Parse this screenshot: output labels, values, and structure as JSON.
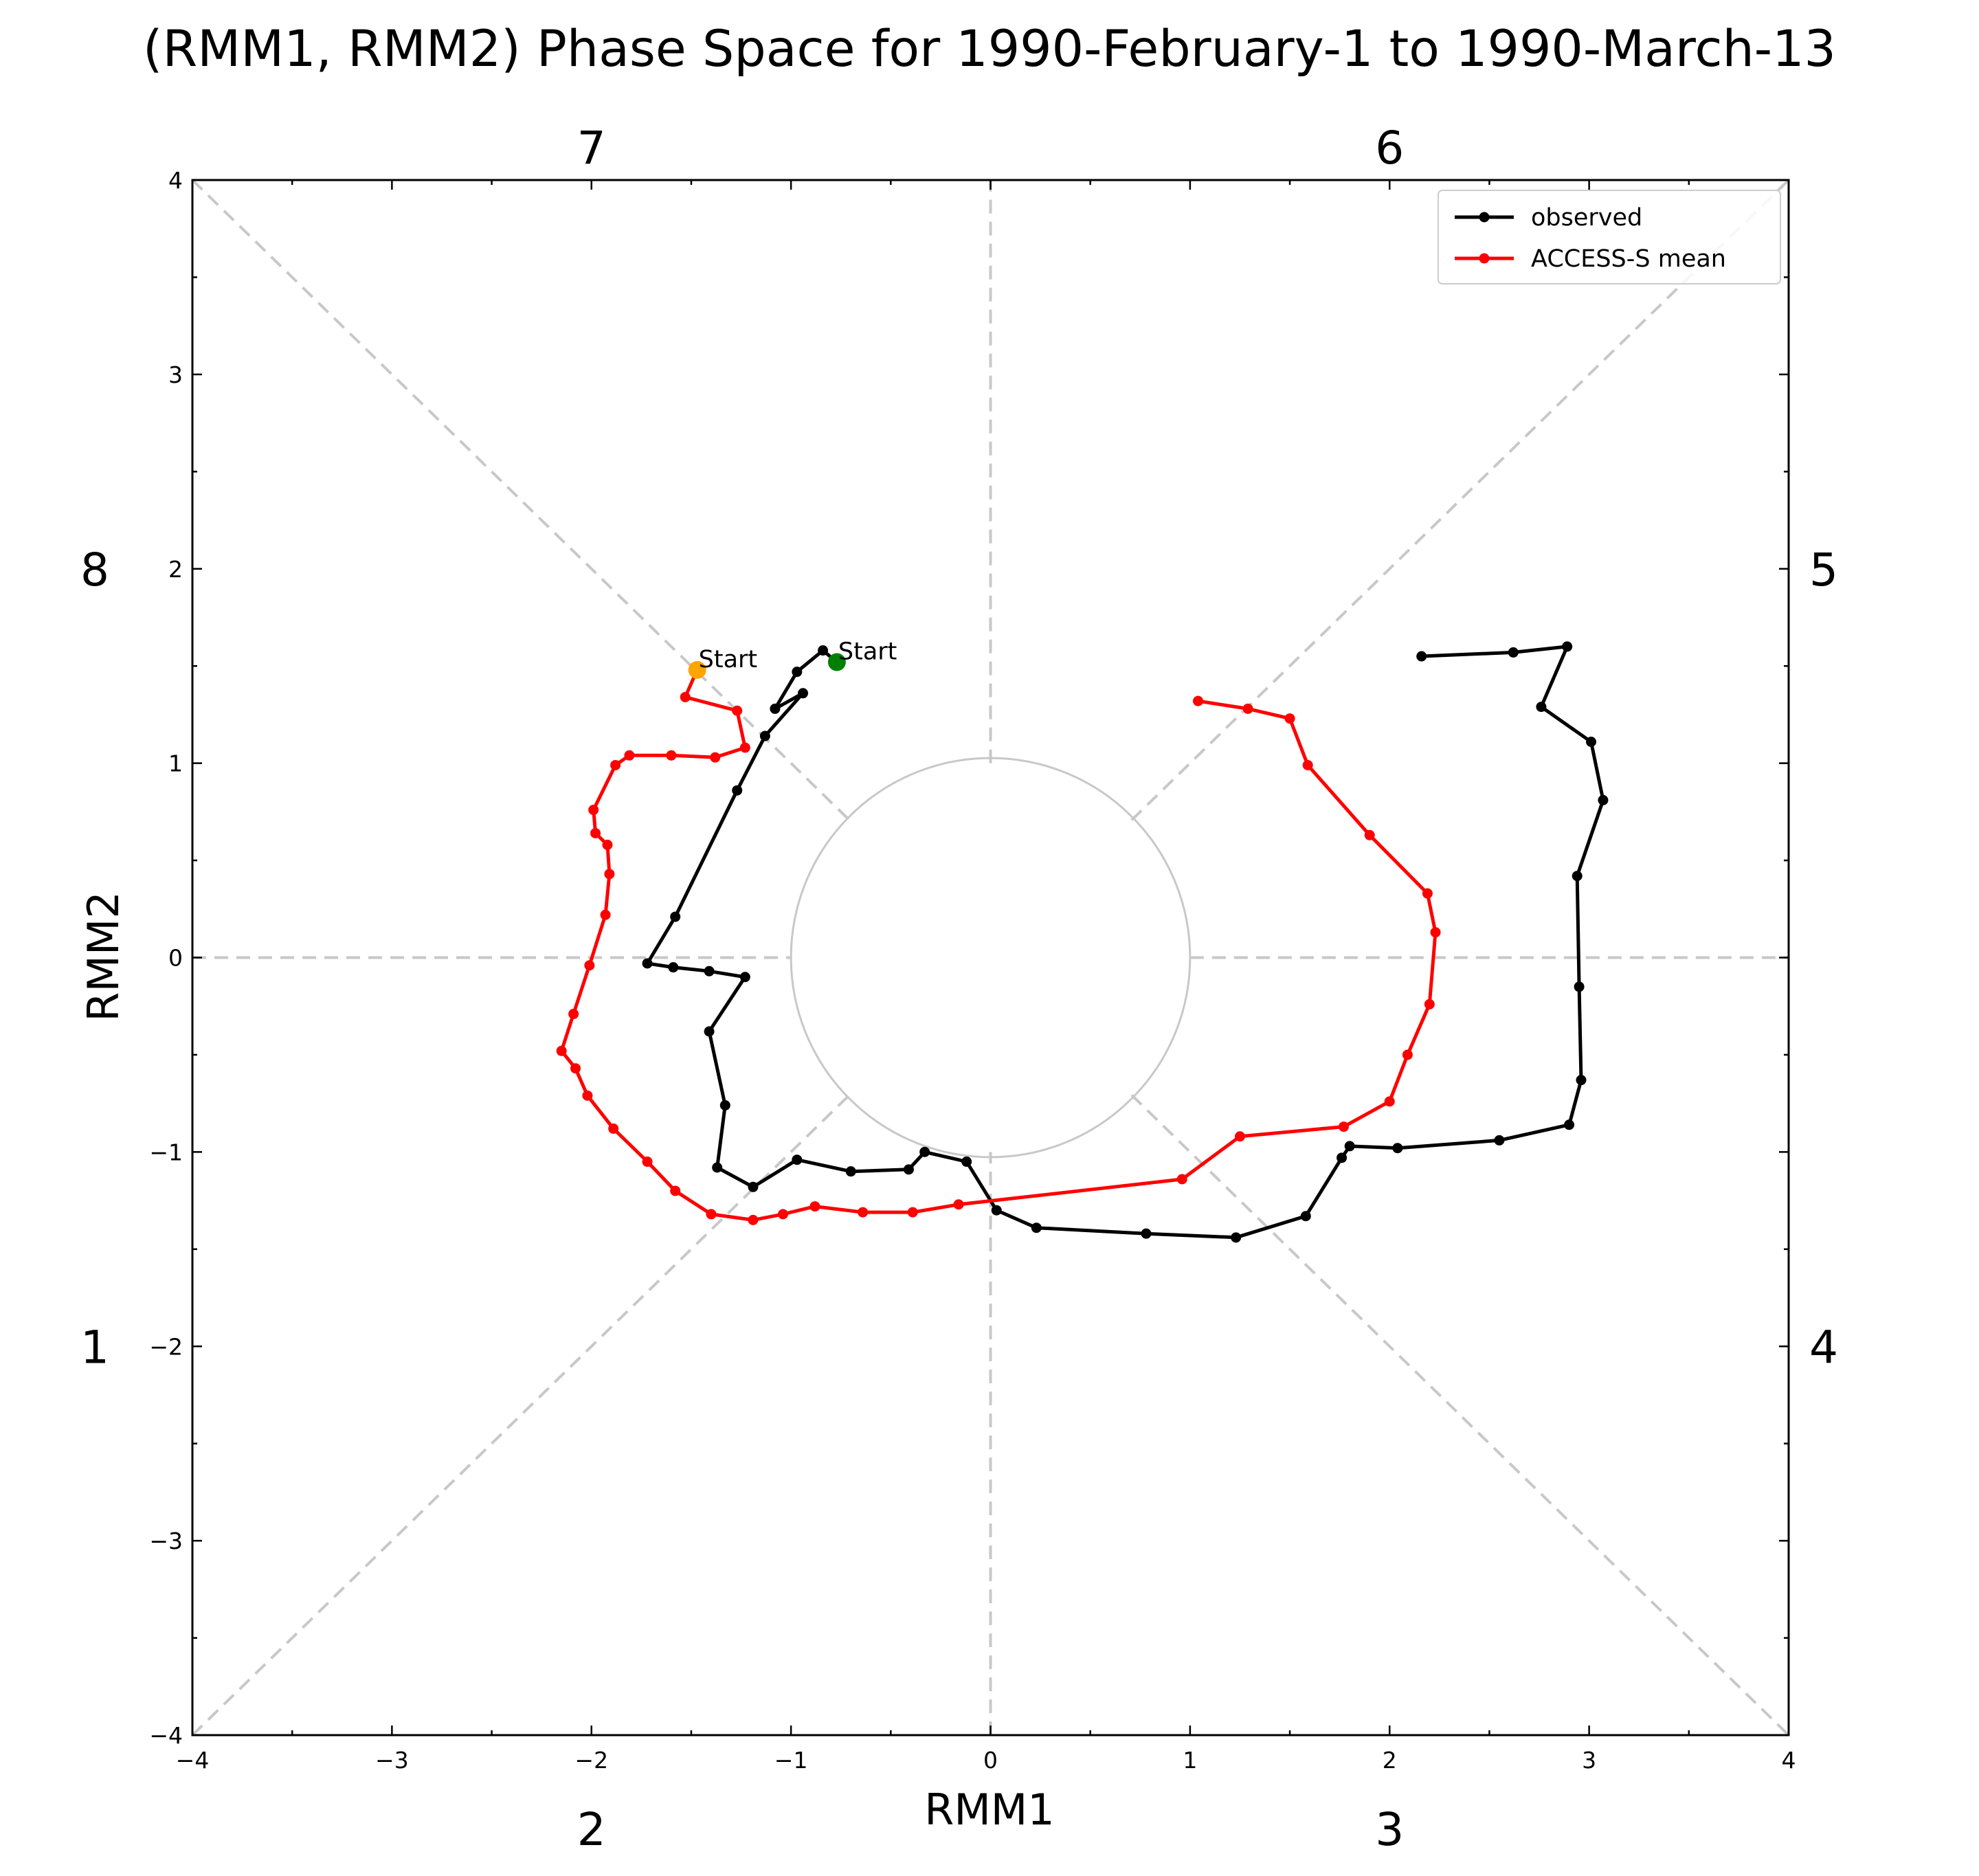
{
  "chart_data": {
    "type": "line",
    "title": "(RMM1, RMM2) Phase Space for 1990-February-1 to 1990-March-13",
    "xlabel": "RMM1",
    "ylabel": "RMM2",
    "xlim": [
      -4,
      4
    ],
    "ylim": [
      -4,
      4
    ],
    "xticks": [
      -4,
      -3,
      -2,
      -1,
      0,
      1,
      2,
      3,
      4
    ],
    "yticks": [
      -4,
      -3,
      -2,
      -1,
      0,
      1,
      2,
      3,
      4
    ],
    "xtick_labels": [
      "−4",
      "−3",
      "−2",
      "−1",
      "0",
      "1",
      "2",
      "3",
      "4"
    ],
    "ytick_labels": [
      "−4",
      "−3",
      "−2",
      "−1",
      "0",
      "1",
      "2",
      "3",
      "4"
    ],
    "grid": false,
    "legend": "top-right",
    "reference_circle_radius": 1,
    "phase_labels": [
      {
        "label": "7",
        "side": "top",
        "at": -2
      },
      {
        "label": "6",
        "side": "top",
        "at": 2
      },
      {
        "label": "8",
        "side": "left",
        "at": 2
      },
      {
        "label": "1",
        "side": "left",
        "at": -2
      },
      {
        "label": "5",
        "side": "right",
        "at": 2
      },
      {
        "label": "4",
        "side": "right",
        "at": -2
      },
      {
        "label": "2",
        "side": "bottom",
        "at": -2
      },
      {
        "label": "3",
        "side": "bottom",
        "at": 2
      }
    ],
    "series": [
      {
        "name": "observed",
        "color": "#000000",
        "start_label": "Start",
        "start_marker_color": "#008000",
        "points": [
          [
            -0.77,
            1.52
          ],
          [
            -0.84,
            1.58
          ],
          [
            -0.97,
            1.47
          ],
          [
            -1.08,
            1.28
          ],
          [
            -0.94,
            1.36
          ],
          [
            -1.13,
            1.14
          ],
          [
            -1.27,
            0.86
          ],
          [
            -1.58,
            0.21
          ],
          [
            -1.72,
            -0.03
          ],
          [
            -1.59,
            -0.05
          ],
          [
            -1.41,
            -0.07
          ],
          [
            -1.23,
            -0.1
          ],
          [
            -1.41,
            -0.38
          ],
          [
            -1.33,
            -0.76
          ],
          [
            -1.37,
            -1.08
          ],
          [
            -1.19,
            -1.18
          ],
          [
            -0.97,
            -1.04
          ],
          [
            -0.7,
            -1.1
          ],
          [
            -0.41,
            -1.09
          ],
          [
            -0.33,
            -1.0
          ],
          [
            -0.12,
            -1.05
          ],
          [
            0.03,
            -1.3
          ],
          [
            0.23,
            -1.39
          ],
          [
            0.78,
            -1.42
          ],
          [
            1.23,
            -1.44
          ],
          [
            1.58,
            -1.33
          ],
          [
            1.76,
            -1.03
          ],
          [
            1.8,
            -0.97
          ],
          [
            2.04,
            -0.98
          ],
          [
            2.55,
            -0.94
          ],
          [
            2.9,
            -0.86
          ],
          [
            2.96,
            -0.63
          ],
          [
            2.95,
            -0.15
          ],
          [
            2.94,
            0.42
          ],
          [
            3.07,
            0.81
          ],
          [
            3.01,
            1.11
          ],
          [
            2.76,
            1.29
          ],
          [
            2.89,
            1.6
          ],
          [
            2.62,
            1.57
          ],
          [
            2.16,
            1.55
          ]
        ]
      },
      {
        "name": "ACCESS-S mean",
        "color": "#ff0000",
        "start_label": "Start",
        "start_marker_color": "#ffa500",
        "points": [
          [
            -1.47,
            1.48
          ],
          [
            -1.53,
            1.34
          ],
          [
            -1.27,
            1.27
          ],
          [
            -1.23,
            1.08
          ],
          [
            -1.38,
            1.03
          ],
          [
            -1.6,
            1.04
          ],
          [
            -1.81,
            1.04
          ],
          [
            -1.88,
            0.99
          ],
          [
            -1.99,
            0.76
          ],
          [
            -1.98,
            0.64
          ],
          [
            -1.92,
            0.58
          ],
          [
            -1.91,
            0.43
          ],
          [
            -1.93,
            0.22
          ],
          [
            -2.01,
            -0.04
          ],
          [
            -2.09,
            -0.29
          ],
          [
            -2.15,
            -0.48
          ],
          [
            -2.08,
            -0.57
          ],
          [
            -2.02,
            -0.71
          ],
          [
            -1.89,
            -0.88
          ],
          [
            -1.72,
            -1.05
          ],
          [
            -1.58,
            -1.2
          ],
          [
            -1.4,
            -1.32
          ],
          [
            -1.19,
            -1.35
          ],
          [
            -1.04,
            -1.32
          ],
          [
            -0.88,
            -1.28
          ],
          [
            -0.64,
            -1.31
          ],
          [
            -0.39,
            -1.31
          ],
          [
            -0.16,
            -1.27
          ],
          [
            0.96,
            -1.14
          ],
          [
            1.25,
            -0.92
          ],
          [
            1.77,
            -0.87
          ],
          [
            2.0,
            -0.74
          ],
          [
            2.09,
            -0.5
          ],
          [
            2.2,
            -0.24
          ],
          [
            2.23,
            0.13
          ],
          [
            2.19,
            0.33
          ],
          [
            1.9,
            0.63
          ],
          [
            1.59,
            0.99
          ],
          [
            1.5,
            1.23
          ],
          [
            1.29,
            1.28
          ],
          [
            1.04,
            1.32
          ]
        ]
      }
    ]
  }
}
